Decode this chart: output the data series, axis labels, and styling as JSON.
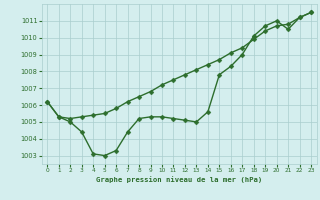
{
  "line1_x": [
    0,
    1,
    2,
    3,
    4,
    5,
    6,
    7,
    8,
    9,
    10,
    11,
    12,
    13,
    14,
    15,
    16,
    17,
    18,
    19,
    20,
    21,
    22,
    23
  ],
  "line1_y": [
    1006.2,
    1005.3,
    1005.2,
    1005.3,
    1005.4,
    1005.5,
    1005.8,
    1006.2,
    1006.5,
    1006.8,
    1007.2,
    1007.5,
    1007.8,
    1008.1,
    1008.4,
    1008.7,
    1009.1,
    1009.4,
    1009.9,
    1010.4,
    1010.7,
    1010.8,
    1011.2,
    1011.5
  ],
  "line2_x": [
    0,
    1,
    2,
    3,
    4,
    5,
    6,
    7,
    8,
    9,
    10,
    11,
    12,
    13,
    14,
    15,
    16,
    17,
    18,
    19,
    20,
    21,
    22,
    23
  ],
  "line2_y": [
    1006.2,
    1005.3,
    1005.0,
    1004.4,
    1003.1,
    1003.0,
    1003.3,
    1004.4,
    1005.2,
    1005.3,
    1005.3,
    1005.2,
    1005.1,
    1005.0,
    1005.6,
    1007.8,
    1008.3,
    1009.0,
    1010.1,
    1010.7,
    1011.0,
    1010.5,
    1011.2,
    1011.5
  ],
  "line_color": "#2d6e2d",
  "bg_color": "#d4eeee",
  "grid_color": "#aacece",
  "xlabel": "Graphe pression niveau de la mer (hPa)",
  "ylim": [
    1002.5,
    1012.0
  ],
  "xlim": [
    -0.5,
    23.5
  ],
  "yticks": [
    1003,
    1004,
    1005,
    1006,
    1007,
    1008,
    1009,
    1010,
    1011
  ],
  "xticks": [
    0,
    1,
    2,
    3,
    4,
    5,
    6,
    7,
    8,
    9,
    10,
    11,
    12,
    13,
    14,
    15,
    16,
    17,
    18,
    19,
    20,
    21,
    22,
    23
  ],
  "markersize": 2.5,
  "linewidth": 1.0
}
